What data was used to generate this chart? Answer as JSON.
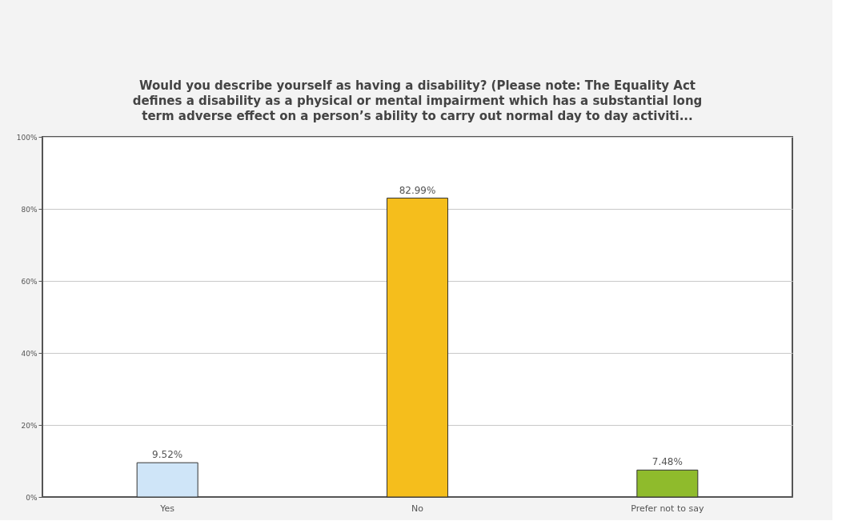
{
  "chart_data": {
    "type": "bar",
    "title": "Would you describe yourself as having a disability? (Please note: The Equality Act defines a disability as a physical or mental impairment which has a substantial long term adverse effect on a person’s ability to carry out normal day to day activiti...",
    "categories": [
      "Yes",
      "No",
      "Prefer not to say"
    ],
    "values": [
      9.52,
      82.99,
      7.48
    ],
    "colors": [
      "#cfe5f8",
      "#f5be1c",
      "#8fbb2c"
    ],
    "value_labels": [
      "9.52%",
      "82.99%",
      "7.48%"
    ],
    "ylim": [
      0,
      100
    ],
    "yticks": [
      {
        "value": 0,
        "label": "0%"
      },
      {
        "value": 20,
        "label": "20%"
      },
      {
        "value": 40,
        "label": "40%"
      },
      {
        "value": 60,
        "label": "60%"
      },
      {
        "value": 80,
        "label": "80%"
      },
      {
        "value": 100,
        "label": "100%"
      }
    ],
    "grid": "y"
  }
}
